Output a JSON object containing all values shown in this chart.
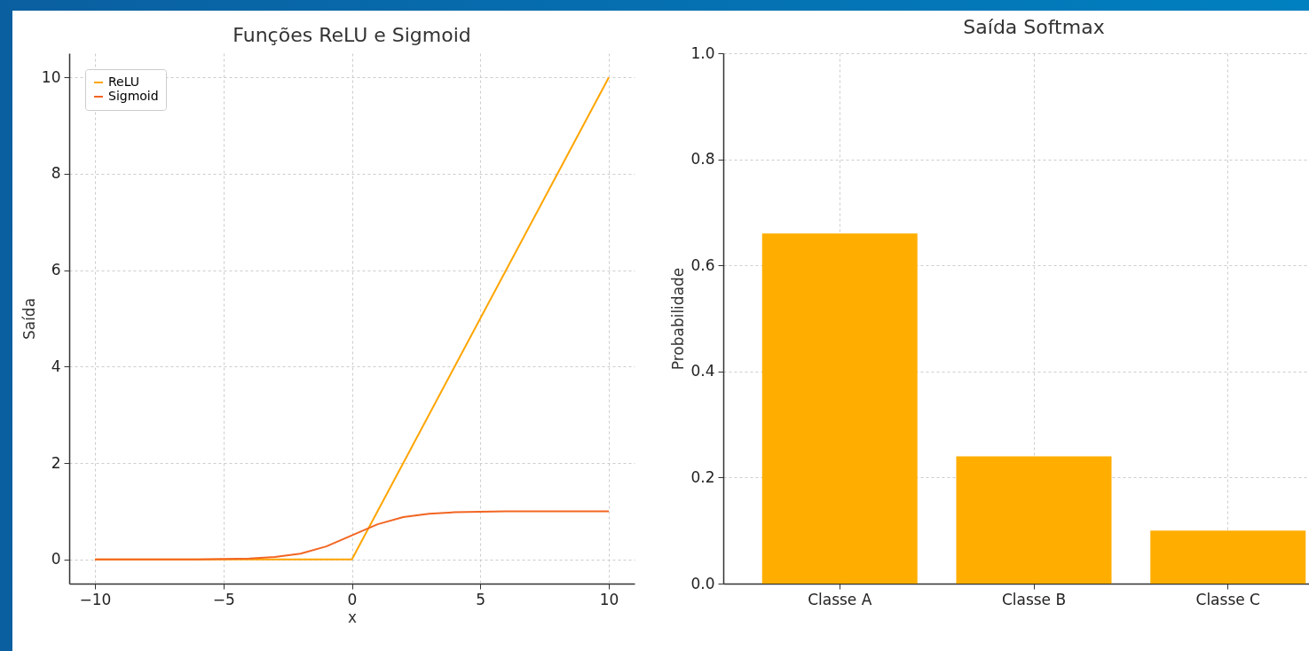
{
  "chart_data": [
    {
      "type": "line",
      "title": "Funções ReLU e Sigmoid",
      "xlabel": "x",
      "ylabel": "Saída",
      "series": [
        {
          "name": "ReLU",
          "color": "#ffa500",
          "x": [
            -10,
            0,
            10
          ],
          "values": [
            0,
            0,
            10
          ]
        },
        {
          "name": "Sigmoid",
          "color": "#f26522",
          "x": [
            -10,
            -8,
            -6,
            -5,
            -4,
            -3,
            -2,
            -1,
            0,
            1,
            2,
            3,
            4,
            5,
            6,
            8,
            10
          ],
          "values": [
            0.0,
            0.0,
            0.0,
            0.01,
            0.02,
            0.05,
            0.12,
            0.27,
            0.5,
            0.73,
            0.88,
            0.95,
            0.98,
            0.99,
            1.0,
            1.0,
            1.0
          ]
        }
      ],
      "xlim": [
        -11,
        11
      ],
      "ylim": [
        -0.5,
        10.5
      ],
      "xticks": [
        {
          "value": -10,
          "label": "−10"
        },
        {
          "value": -5,
          "label": "−5"
        },
        0,
        5,
        10
      ],
      "yticks": [
        0,
        2,
        4,
        6,
        8,
        10
      ],
      "grid": true,
      "legend": "top left",
      "marker": "none",
      "line_style": "solid"
    },
    {
      "type": "bar",
      "title": "Saída Softmax",
      "ylabel": "Probabilidade",
      "categories": [
        "Classe A",
        "Classe B",
        "Classe C"
      ],
      "values": [
        0.66,
        0.24,
        0.1
      ],
      "color": "#ffae00",
      "ylim": [
        0,
        1
      ],
      "yticks": [
        {
          "value": 0,
          "label": "0.0"
        },
        {
          "value": 0.2,
          "label": "0.2"
        },
        {
          "value": 0.4,
          "label": "0.4"
        },
        {
          "value": 0.6,
          "label": "0.6"
        },
        {
          "value": 0.8,
          "label": "0.8"
        },
        {
          "value": 1,
          "label": "1.0"
        }
      ],
      "grid": true
    }
  ]
}
